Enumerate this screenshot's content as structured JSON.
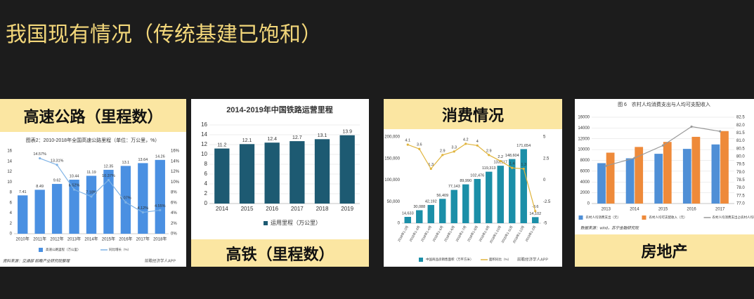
{
  "title": "我国现有情况（传统基建已饱和）",
  "panels": [
    {
      "label": "高速公路（里程数）"
    },
    {
      "label": "高铁（里程数）"
    },
    {
      "label": "消费情况"
    },
    {
      "label": "房地产"
    }
  ],
  "chart_data": [
    {
      "type": "bar",
      "title": "图表2：2010-2018年全国高速公路里程（单位：万公里，%）",
      "source": "资料来源：交通部 前瞻产业研究院整理",
      "watermark": "前瞻经济学人APP",
      "categories": [
        "2010年",
        "2011年",
        "2012年",
        "2013年",
        "2014年",
        "2015年",
        "2016年",
        "2017年",
        "2018年"
      ],
      "series": [
        {
          "name": "高速公路里程（万公里）",
          "type": "bar",
          "color": "#4a90e2",
          "values": [
            7.41,
            8.49,
            9.62,
            10.44,
            11.19,
            12.35,
            13.1,
            13.64,
            14.26
          ]
        },
        {
          "name": "同比增长（%）",
          "type": "line",
          "axis": "y2",
          "color": "#7fb3e6",
          "values": [
            null,
            14.57,
            13.31,
            8.52,
            7.18,
            10.37,
            6.07,
            4.12,
            4.55
          ],
          "value_labels": [
            null,
            "14.57%",
            "13.31%",
            "8.52%",
            "7.18%",
            "10.37%",
            "6.07%",
            "4.12%",
            "4.55%"
          ]
        }
      ],
      "ylim": [
        0,
        16
      ],
      "yticks": [
        0,
        2,
        4,
        6,
        8,
        10,
        12,
        14,
        16
      ],
      "y2lim": [
        0,
        16
      ],
      "y2ticks": [
        {
          "value": 0,
          "label": "0%"
        },
        {
          "value": 2,
          "label": "2%"
        },
        {
          "value": 4,
          "label": "4%"
        },
        {
          "value": 6,
          "label": "6%"
        },
        {
          "value": 8,
          "label": "8%"
        },
        {
          "value": 10,
          "label": "10%"
        },
        {
          "value": 12,
          "label": "12%"
        },
        {
          "value": 14,
          "label": "14%"
        },
        {
          "value": 16,
          "label": "16%"
        }
      ],
      "grid": false
    },
    {
      "type": "bar",
      "title": "2014-2019年中国铁路运营里程",
      "categories": [
        "2014",
        "2015",
        "2016",
        "2017",
        "2018",
        "2019"
      ],
      "series": [
        {
          "name": "运用里程（万公里）",
          "type": "bar",
          "color": "#1d5a72",
          "values": [
            11.2,
            12.1,
            12.4,
            12.7,
            13.1,
            13.9
          ]
        }
      ],
      "ylim": [
        0,
        16
      ],
      "yticks": [
        0,
        2,
        4,
        6,
        8,
        10,
        12,
        14,
        16
      ],
      "grid": true
    },
    {
      "type": "bar",
      "watermark": "前瞻经济学人APP",
      "categories": [
        "2018年1-2月",
        "2018年1-3月",
        "2018年1-4月",
        "2018年1-5月",
        "2018年1-6月",
        "2018年1-7月",
        "2018年1-8月",
        "2018年1-9月",
        "2018年1-10月",
        "2018年1-11月",
        "2018年1-12月",
        "2019年1-2月"
      ],
      "series": [
        {
          "name": "中国商品房销售面积（万平方米）",
          "type": "bar",
          "color": "#1b8fa8",
          "values": [
            14633,
            30088,
            42192,
            56409,
            77143,
            89990,
            102476,
            119313,
            133117,
            148604,
            171654,
            14102
          ],
          "value_labels": [
            "14,633",
            "30,088",
            "42,192",
            "56,409",
            "77,143",
            "89,990",
            "102,476",
            "119,313",
            "133,117",
            "148,604",
            "171,654",
            "14,102"
          ]
        },
        {
          "name": "面积同比（%）",
          "type": "line",
          "axis": "y2",
          "color": "#e0b43c",
          "values": [
            4.1,
            3.6,
            1.3,
            2.9,
            3.3,
            4.2,
            4,
            2.9,
            2.2,
            1.4,
            1.3,
            -3.6
          ]
        }
      ],
      "ylim": [
        0,
        200000
      ],
      "yticks": [
        {
          "value": 0,
          "label": "0"
        },
        {
          "value": 50000,
          "label": "50,000"
        },
        {
          "value": 100000,
          "label": "100,000"
        },
        {
          "value": 150000,
          "label": "150,000"
        },
        {
          "value": 200000,
          "label": "200,000"
        }
      ],
      "y2lim": [
        -5,
        5
      ],
      "y2ticks": [
        -5,
        -2.5,
        0,
        2.5,
        5
      ],
      "grid": false
    },
    {
      "type": "bar",
      "title": "图 6　农村人均消费支出与人均可支配收入",
      "source": "数据来源：wind，苏宁金融研究院",
      "categories": [
        "2013",
        "2014",
        "2015",
        "2016",
        "2017"
      ],
      "series": [
        {
          "name": "农村人均消费支出（元）",
          "type": "bar",
          "color": "#4f8fd6",
          "values": [
            7485,
            8383,
            9223,
            10130,
            10955
          ]
        },
        {
          "name": "农村人均可支配收入（元）",
          "type": "bar",
          "color": "#ee8a3a",
          "values": [
            9430,
            10489,
            11422,
            12363,
            13432
          ]
        },
        {
          "name": "农村人均消费支出占农村人均可支配收入比重（%）",
          "type": "line",
          "axis": "y2",
          "color": "#999999",
          "values": [
            79.4,
            79.9,
            80.7,
            81.9,
            81.6
          ]
        }
      ],
      "ylim": [
        0,
        16000
      ],
      "yticks": [
        0,
        2000,
        4000,
        6000,
        8000,
        10000,
        12000,
        14000,
        16000
      ],
      "y2lim": [
        77,
        82.5
      ],
      "y2ticks": [
        {
          "value": 77,
          "label": "77.0"
        },
        {
          "value": 77.5,
          "label": "77.5"
        },
        {
          "value": 78,
          "label": "78.0"
        },
        {
          "value": 78.5,
          "label": "78.5"
        },
        {
          "value": 79,
          "label": "79.0"
        },
        {
          "value": 79.5,
          "label": "79.5"
        },
        {
          "value": 80,
          "label": "80.0"
        },
        {
          "value": 80.5,
          "label": "80.5"
        },
        {
          "value": 81,
          "label": "81.0"
        },
        {
          "value": 81.5,
          "label": "81.5"
        },
        {
          "value": 82,
          "label": "82.0"
        },
        {
          "value": 82.5,
          "label": "82.5"
        }
      ],
      "grid": true
    }
  ]
}
